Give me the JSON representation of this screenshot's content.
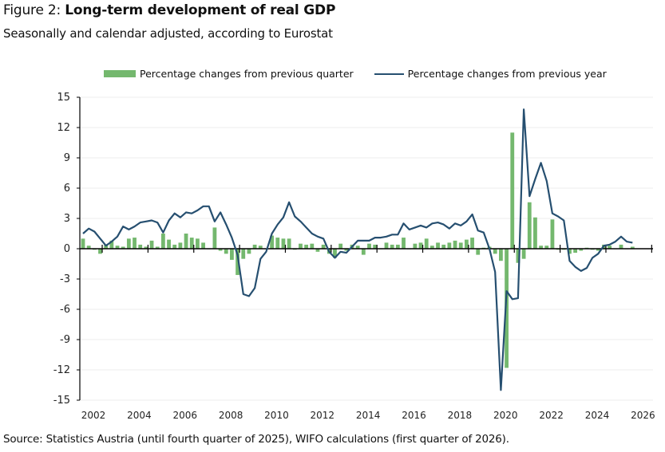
{
  "header": {
    "figure_prefix": "Figure 2: ",
    "title": "Long-term development of real GDP",
    "subtitle": "Seasonally and calendar adjusted, according to Eurostat"
  },
  "legend": {
    "bar_label": "Percentage changes from previous quarter",
    "line_label": "Percentage changes from previous year"
  },
  "footer": {
    "source": "Source: Statistics Austria (until fourth quarter of 2025), WIFO calculations (first quarter of 2026)."
  },
  "colors": {
    "bar": "#74b86e",
    "line": "#264f70",
    "grid": "#ececec",
    "axis": "#000000"
  },
  "chart_data": {
    "type": "bar",
    "title": "Long-term development of real GDP",
    "subtitle": "Seasonally and calendar adjusted, according to Eurostat",
    "xlabel": "",
    "ylabel": "",
    "ylim": [
      -15,
      15
    ],
    "yticks": [
      15,
      12,
      9,
      6,
      3,
      0,
      -3,
      -6,
      -9,
      -12,
      -15
    ],
    "xtick_labels": [
      "2002",
      "2004",
      "2006",
      "2008",
      "2010",
      "2012",
      "2014",
      "2016",
      "2018",
      "2020",
      "2022",
      "2024",
      "2026"
    ],
    "grid": true,
    "legend_position": "top",
    "period": "quarterly 2002Q1–2026Q1",
    "series": [
      {
        "name": "Percentage changes from previous quarter",
        "type": "bar",
        "values": [
          1.0,
          0.3,
          -0.1,
          -0.5,
          0.4,
          0.8,
          0.3,
          0.2,
          1.0,
          1.1,
          0.4,
          0.2,
          0.8,
          0.2,
          1.5,
          0.9,
          0.4,
          0.6,
          1.5,
          1.1,
          1.0,
          0.6,
          0.0,
          2.1,
          -0.2,
          -0.5,
          -1.1,
          -2.6,
          -1.0,
          -0.5,
          0.4,
          0.3,
          0.0,
          1.3,
          1.1,
          1.0,
          1.0,
          -0.1,
          0.5,
          0.4,
          0.5,
          -0.3,
          0.4,
          -0.5,
          -0.9,
          0.5,
          -0.2,
          0.4,
          0.3,
          -0.6,
          0.5,
          0.4,
          0.0,
          0.6,
          0.4,
          0.4,
          1.1,
          0.0,
          0.5,
          0.6,
          1.0,
          0.3,
          0.6,
          0.4,
          0.6,
          0.8,
          0.6,
          0.9,
          1.1,
          -0.6,
          0.1,
          0.2,
          -0.5,
          -1.2,
          -11.8,
          11.5,
          -1.4,
          -1.0,
          4.6,
          3.1,
          0.3,
          0.3,
          2.9,
          -0.1,
          -0.1,
          -0.5,
          -0.4,
          -0.2,
          0.1,
          -0.1,
          -0.2,
          0.4,
          0.3,
          0.0,
          0.4,
          0.0,
          0.2
        ]
      },
      {
        "name": "Percentage changes from previous year",
        "type": "line",
        "values": [
          1.5,
          2.0,
          1.7,
          1.0,
          0.3,
          0.7,
          1.2,
          2.2,
          1.9,
          2.2,
          2.6,
          2.7,
          2.8,
          2.6,
          1.6,
          2.8,
          3.5,
          3.1,
          3.6,
          3.5,
          3.8,
          4.2,
          4.2,
          2.7,
          3.6,
          2.4,
          1.1,
          -0.6,
          -4.5,
          -4.7,
          -3.9,
          -1.0,
          -0.3,
          1.5,
          2.4,
          3.1,
          4.6,
          3.2,
          2.7,
          2.1,
          1.5,
          1.2,
          1.0,
          -0.3,
          -0.9,
          -0.3,
          -0.4,
          0.2,
          0.8,
          0.8,
          0.8,
          1.1,
          1.1,
          1.2,
          1.4,
          1.4,
          2.5,
          1.9,
          2.1,
          2.3,
          2.1,
          2.5,
          2.6,
          2.4,
          2.0,
          2.5,
          2.3,
          2.7,
          3.4,
          1.8,
          1.6,
          0.0,
          -2.3,
          -14.0,
          -4.2,
          -5.0,
          -4.9,
          13.8,
          5.2,
          6.9,
          8.5,
          6.7,
          3.5,
          3.2,
          2.8,
          -1.2,
          -1.8,
          -2.2,
          -1.9,
          -0.9,
          -0.5,
          0.3,
          0.4,
          0.7,
          1.2,
          0.7,
          0.6
        ]
      }
    ]
  }
}
